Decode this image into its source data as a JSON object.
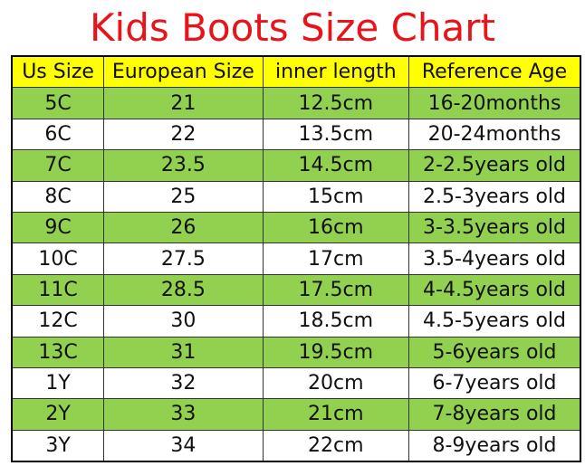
{
  "header": {
    "title": "Kids Boots Size Chart"
  },
  "table": {
    "columns": [
      "Us Size",
      "European Size",
      "inner length",
      "Reference Age"
    ],
    "rows": [
      [
        "5C",
        "21",
        "12.5cm",
        "16-20months"
      ],
      [
        "6C",
        "22",
        "13.5cm",
        "20-24months"
      ],
      [
        "7C",
        "23.5",
        "14.5cm",
        "2-2.5years old"
      ],
      [
        "8C",
        "25",
        "15cm",
        "2.5-3years old"
      ],
      [
        "9C",
        "26",
        "16cm",
        "3-3.5years old"
      ],
      [
        "10C",
        "27.5",
        "17cm",
        "3.5-4years old"
      ],
      [
        "11C",
        "28.5",
        "17.5cm",
        "4-4.5years old"
      ],
      [
        "12C",
        "30",
        "18.5cm",
        "4.5-5years old"
      ],
      [
        "13C",
        "31",
        "19.5cm",
        "5-6years old"
      ],
      [
        "1Y",
        "32",
        "20cm",
        "6-7years old"
      ],
      [
        "2Y",
        "33",
        "21cm",
        "7-8years old"
      ],
      [
        "3Y",
        "34",
        "22cm",
        "8-9years old"
      ]
    ]
  }
}
